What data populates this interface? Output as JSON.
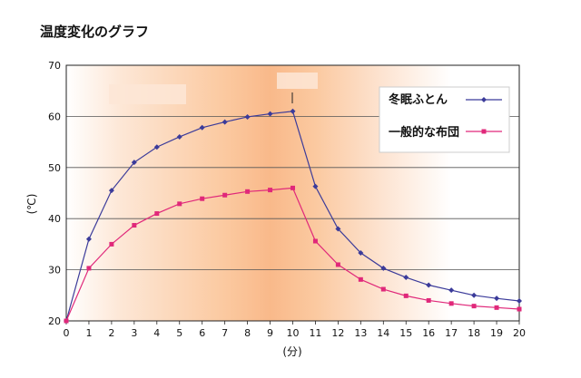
{
  "chart_data": {
    "type": "line",
    "title": "温度変化のグラフ",
    "xlabel": "(分)",
    "ylabel": "(℃)",
    "x": [
      0,
      1,
      2,
      3,
      4,
      5,
      6,
      7,
      8,
      9,
      10,
      11,
      12,
      13,
      14,
      15,
      16,
      17,
      18,
      19,
      20
    ],
    "xlim": [
      0,
      20
    ],
    "ylim": [
      20,
      70
    ],
    "yticks": [
      20,
      30,
      40,
      50,
      60,
      70
    ],
    "grid": true,
    "legend": "top-right",
    "series": [
      {
        "name": "冬眠ふとん",
        "color": "#3b3b9a",
        "marker": "diamond",
        "values": [
          20,
          36,
          45.5,
          51,
          54,
          56,
          57.8,
          58.9,
          59.9,
          60.5,
          61,
          46.3,
          38,
          33.3,
          30.3,
          28.5,
          27,
          26,
          25,
          24.4,
          23.9
        ]
      },
      {
        "name": "一般的な布団",
        "color": "#e0287a",
        "marker": "square",
        "values": [
          20,
          30.3,
          35,
          38.7,
          41,
          42.9,
          43.9,
          44.6,
          45.3,
          45.6,
          46,
          35.6,
          31,
          28.1,
          26.2,
          24.9,
          24,
          23.4,
          22.9,
          22.6,
          22.3
        ]
      }
    ]
  }
}
